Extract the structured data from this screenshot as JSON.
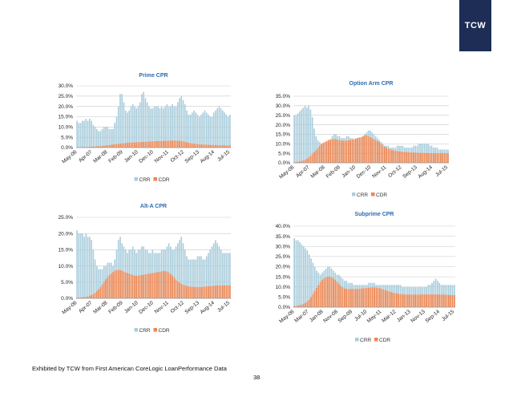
{
  "brand": {
    "logo_text": "TCW",
    "logo_color": "#1d2d56"
  },
  "footer": {
    "source": "Exhibited by TCW from First American CoreLogic LoanPerformance Data",
    "page": "38"
  },
  "colors": {
    "crr": "#a9cddc",
    "cdr": "#ef8650",
    "title": "#2b6cb0"
  },
  "chart_data": [
    {
      "type": "bar",
      "title": "Prime CPR",
      "x_tick_labels": [
        "May-06",
        "Apr-07",
        "Mar-08",
        "Feb-09",
        "Jan-10",
        "Dec-10",
        "Nov-11",
        "Oct-12",
        "Sep-13",
        "Aug-14",
        "Jul-15"
      ],
      "y_ticks": [
        "0.0%",
        "5.0%",
        "10.0%",
        "15.0%",
        "20.0%",
        "25.0%",
        "30.0%"
      ],
      "ylim": [
        0,
        30
      ],
      "legend": [
        "CRR",
        "CDR"
      ],
      "series": [
        {
          "name": "CRR",
          "values": [
            13,
            12,
            12,
            13,
            13,
            14,
            13,
            14,
            13,
            11,
            10,
            9,
            8,
            8,
            9,
            10,
            10,
            10,
            9,
            9,
            9,
            12,
            15,
            20,
            26,
            26,
            22,
            18,
            17,
            18,
            20,
            21,
            20,
            19,
            20,
            22,
            26,
            27,
            24,
            22,
            20,
            19,
            19,
            20,
            20,
            20,
            19,
            20,
            19,
            20,
            21,
            20,
            20,
            21,
            20,
            20,
            22,
            24,
            25,
            23,
            21,
            18,
            16,
            16,
            17,
            18,
            17,
            16,
            15,
            16,
            17,
            18,
            17,
            16,
            15,
            15,
            17,
            18,
            19,
            20,
            19,
            18,
            17,
            16,
            15,
            16
          ]
        },
        {
          "name": "CDR",
          "values": [
            0.2,
            0.2,
            0.2,
            0.3,
            0.3,
            0.3,
            0.3,
            0.4,
            0.4,
            0.5,
            0.5,
            0.6,
            0.6,
            0.7,
            0.8,
            0.9,
            1.0,
            1.1,
            1.2,
            1.4,
            1.5,
            1.6,
            1.7,
            1.8,
            1.9,
            2.0,
            2.1,
            2.2,
            2.3,
            2.4,
            2.4,
            2.5,
            2.5,
            2.6,
            2.6,
            2.7,
            2.7,
            2.8,
            2.8,
            2.9,
            2.9,
            3.0,
            3.0,
            3.0,
            3.1,
            3.1,
            3.1,
            3.2,
            3.2,
            3.2,
            3.3,
            3.3,
            3.3,
            3.4,
            3.4,
            3.4,
            3.3,
            3.2,
            3.1,
            3.0,
            2.8,
            2.6,
            2.4,
            2.2,
            2.0,
            1.9,
            1.8,
            1.7,
            1.6,
            1.5,
            1.5,
            1.4,
            1.4,
            1.3,
            1.3,
            1.3,
            1.2,
            1.2,
            1.2,
            1.1,
            1.1,
            1.1,
            1.0,
            1.0,
            1.0,
            1.0
          ]
        }
      ]
    },
    {
      "type": "bar",
      "title": "Option Arm CPR",
      "x_tick_labels": [
        "May-06",
        "Apr-07",
        "Mar-08",
        "Feb-09",
        "Jan-10",
        "Dec-10",
        "Nov-11",
        "Oct-12",
        "Sep-13",
        "Aug-14",
        "Jul-15"
      ],
      "y_ticks": [
        "0.0%",
        "5.0%",
        "10.0%",
        "15.0%",
        "20.0%",
        "25.0%",
        "30.0%",
        "35.0%"
      ],
      "ylim": [
        0,
        35
      ],
      "legend": [
        "CRR",
        "CDR"
      ],
      "series": [
        {
          "name": "CRR",
          "values": [
            25,
            25,
            26,
            27,
            28,
            29,
            30,
            29,
            30,
            28,
            24,
            18,
            14,
            12,
            11,
            10,
            10,
            10,
            10,
            11,
            12,
            14,
            15,
            15,
            14,
            14,
            13,
            13,
            13,
            14,
            14,
            13,
            13,
            12,
            12,
            13,
            13,
            13,
            14,
            15,
            16,
            17,
            17,
            16,
            15,
            14,
            13,
            12,
            11,
            10,
            9,
            9,
            9,
            8,
            8,
            8,
            8,
            9,
            9,
            9,
            9,
            8,
            8,
            8,
            8,
            8,
            9,
            9,
            9,
            10,
            10,
            10,
            10,
            10,
            10,
            9,
            9,
            8,
            8,
            8,
            7,
            7,
            7,
            7,
            7,
            7
          ]
        },
        {
          "name": "CDR",
          "values": [
            0.3,
            0.4,
            0.5,
            0.7,
            0.9,
            1.2,
            1.6,
            2.1,
            2.8,
            3.6,
            4.6,
            5.6,
            6.7,
            7.8,
            8.9,
            9.8,
            10.5,
            11.0,
            11.5,
            12.0,
            12.3,
            12.5,
            12.5,
            12.4,
            12.2,
            12.0,
            11.8,
            11.6,
            11.6,
            11.7,
            11.9,
            12.0,
            12.2,
            12.5,
            12.8,
            13.0,
            13.3,
            13.5,
            14.0,
            14.5,
            14.5,
            14.0,
            13.5,
            13.0,
            12.5,
            12.0,
            11.5,
            11.0,
            10.0,
            9.0,
            8.5,
            8.0,
            7.5,
            7.0,
            6.8,
            6.5,
            6.3,
            6.1,
            6.0,
            5.9,
            5.8,
            5.7,
            5.6,
            5.5,
            5.5,
            5.4,
            5.4,
            5.3,
            5.3,
            5.2,
            5.2,
            5.2,
            5.1,
            5.1,
            5.1,
            5.0,
            5.0,
            5.0,
            5.0,
            5.0,
            5.0,
            5.0,
            5.0,
            5.0,
            5.0,
            5.0
          ]
        }
      ]
    },
    {
      "type": "bar",
      "title": "Alt-A CPR",
      "x_tick_labels": [
        "May-06",
        "Apr-07",
        "Mar-08",
        "Feb-09",
        "Jan-10",
        "Dec-10",
        "Nov-11",
        "Oct-12",
        "Sep-13",
        "Aug-14",
        "Jul-15"
      ],
      "y_ticks": [
        "0.0%",
        "5.0%",
        "10.0%",
        "15.0%",
        "20.0%",
        "25.0%"
      ],
      "ylim": [
        0,
        25
      ],
      "legend": [
        "CRR",
        "CDR"
      ],
      "series": [
        {
          "name": "CRR",
          "values": [
            21,
            20,
            20,
            20,
            19,
            20,
            19,
            19,
            18,
            15,
            12,
            10,
            9,
            9,
            9,
            10,
            10,
            11,
            11,
            11,
            10,
            12,
            15,
            18,
            19,
            17,
            16,
            15,
            14,
            15,
            15,
            16,
            15,
            14,
            15,
            15,
            16,
            16,
            15,
            15,
            14,
            14,
            15,
            14,
            14,
            14,
            14,
            15,
            15,
            15,
            16,
            17,
            16,
            15,
            15,
            16,
            17,
            18,
            19,
            17,
            15,
            13,
            12,
            12,
            12,
            12,
            12,
            13,
            13,
            13,
            12,
            12,
            13,
            14,
            15,
            16,
            17,
            18,
            17,
            16,
            15,
            14,
            14,
            14,
            14,
            14
          ]
        },
        {
          "name": "CDR",
          "values": [
            0.2,
            0.2,
            0.3,
            0.3,
            0.4,
            0.5,
            0.6,
            0.8,
            1.0,
            1.3,
            1.7,
            2.2,
            2.8,
            3.5,
            4.3,
            5.1,
            5.9,
            6.6,
            7.2,
            7.7,
            8.1,
            8.5,
            8.7,
            8.8,
            8.7,
            8.5,
            8.3,
            8.0,
            7.8,
            7.6,
            7.4,
            7.2,
            7.0,
            7.0,
            7.0,
            7.1,
            7.2,
            7.3,
            7.4,
            7.5,
            7.6,
            7.7,
            7.8,
            7.9,
            8.0,
            8.1,
            8.2,
            8.3,
            8.4,
            8.4,
            8.3,
            8.0,
            7.5,
            7.0,
            6.4,
            5.8,
            5.2,
            4.8,
            4.5,
            4.2,
            4.0,
            3.8,
            3.7,
            3.6,
            3.6,
            3.5,
            3.5,
            3.5,
            3.5,
            3.5,
            3.6,
            3.6,
            3.7,
            3.7,
            3.8,
            3.8,
            3.9,
            3.9,
            4.0,
            4.0,
            4.0,
            4.0,
            4.0,
            4.0,
            4.0,
            4.0
          ]
        }
      ]
    },
    {
      "type": "bar",
      "title": "Subprime CPR",
      "x_tick_labels": [
        "May-06",
        "Mar-07",
        "Jan-08",
        "Nov-08",
        "Sep-09",
        "Jul-10",
        "May-11",
        "Mar-12",
        "Jan-13",
        "Nov-13",
        "Sep-14",
        "Jul-15"
      ],
      "y_ticks": [
        "0.0%",
        "5.0%",
        "10.0%",
        "15.0%",
        "20.0%",
        "25.0%",
        "30.0%",
        "35.0%",
        "40.0%"
      ],
      "ylim": [
        0,
        40
      ],
      "legend": [
        "CRR",
        "CDR"
      ],
      "series": [
        {
          "name": "CRR",
          "values": [
            34,
            33,
            33,
            32,
            31,
            30,
            29,
            28,
            26,
            24,
            22,
            20,
            18,
            17,
            16,
            17,
            18,
            19,
            20,
            20,
            19,
            18,
            17,
            16,
            16,
            15,
            14,
            13,
            13,
            12,
            12,
            12,
            11,
            11,
            11,
            11,
            11,
            11,
            11,
            11,
            12,
            12,
            12,
            12,
            11,
            11,
            11,
            11,
            11,
            11,
            11,
            11,
            11,
            11,
            11,
            11,
            11,
            11,
            10,
            10,
            10,
            10,
            10,
            10,
            10,
            10,
            10,
            10,
            10,
            10,
            10,
            10,
            11,
            11,
            12,
            13,
            14,
            13,
            12,
            11,
            11,
            11,
            11,
            11,
            11,
            11,
            11
          ]
        },
        {
          "name": "CDR",
          "values": [
            0.5,
            0.6,
            0.8,
            1.0,
            1.3,
            1.7,
            2.2,
            2.9,
            3.8,
            5.0,
            6.5,
            8.0,
            9.5,
            11.0,
            12.5,
            13.5,
            14.3,
            14.8,
            15.0,
            15.0,
            14.8,
            14.3,
            13.5,
            12.5,
            11.5,
            10.5,
            9.8,
            9.2,
            9.0,
            9.0,
            9.0,
            9.0,
            9.0,
            9.0,
            9.0,
            9.1,
            9.2,
            9.3,
            9.4,
            9.5,
            9.6,
            9.7,
            9.8,
            9.8,
            9.7,
            9.5,
            9.3,
            9.0,
            8.7,
            8.4,
            8.1,
            7.8,
            7.5,
            7.2,
            7.0,
            6.8,
            6.6,
            6.5,
            6.4,
            6.3,
            6.3,
            6.2,
            6.2,
            6.2,
            6.2,
            6.2,
            6.2,
            6.2,
            6.3,
            6.3,
            6.3,
            6.3,
            6.3,
            6.3,
            6.3,
            6.3,
            6.3,
            6.3,
            6.3,
            6.2,
            6.2,
            6.2,
            6.1,
            6.0,
            6.0,
            6.0,
            6.0
          ]
        }
      ]
    }
  ]
}
